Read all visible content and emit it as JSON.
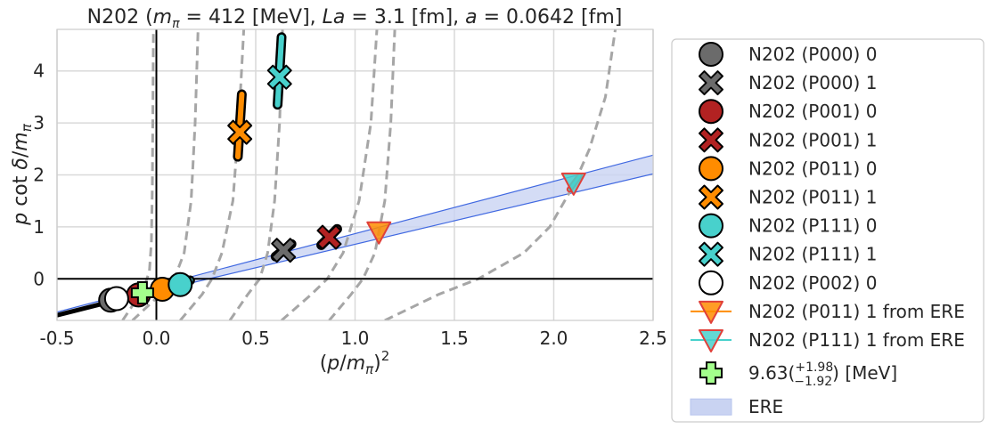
{
  "chart_data": {
    "type": "scatter",
    "title": {
      "main": "N202 (",
      "m": "m",
      "pi": "π",
      "eq1": " = 412 [MeV], ",
      "La": "La",
      "eq2": " = 3.1 [fm], ",
      "a": "a",
      "eq3": " = 0.0642 [fm]"
    },
    "xlabel": "(p/m_π)^2",
    "ylabel": "p cot δ/m_π",
    "xlim": [
      -0.5,
      2.5
    ],
    "ylim": [
      -0.8,
      4.8
    ],
    "xticks": [
      "-0.5",
      "0.0",
      "0.5",
      "1.0",
      "1.5",
      "2.0",
      "2.5"
    ],
    "xtick_values": [
      -0.5,
      0.0,
      0.5,
      1.0,
      1.5,
      2.0,
      2.5
    ],
    "yticks": [
      "0",
      "1",
      "2",
      "3",
      "4"
    ],
    "ytick_values": [
      0,
      1,
      2,
      3,
      4
    ],
    "grid": true,
    "legend_position": "outside-right",
    "colors": {
      "grey": "#6b6b6b",
      "red": "#b22222",
      "orange": "#ff8c00",
      "teal": "#48d1cc",
      "white": "#ffffff",
      "ere_fill": "#c9d3f2",
      "ere_line": "#4169e1",
      "dashed": "#a6a6a6",
      "cross_green": "#a3ff8c"
    },
    "ere_band": {
      "x": [
        -0.5,
        2.5
      ],
      "y_center": [
        -0.66,
        2.2
      ],
      "y_upper": [
        -0.64,
        2.38
      ],
      "y_lower": [
        -0.69,
        2.02
      ]
    },
    "ere_line_low": {
      "x": [
        -0.5,
        0.15
      ],
      "y": [
        -0.72,
        -0.04
      ]
    },
    "black_segment": {
      "x": [
        -0.5,
        -0.22
      ],
      "y": [
        -0.7,
        -0.43
      ]
    },
    "dashed_curves": [
      {
        "asymptote": -0.02,
        "y": [
          -0.8,
          -0.4,
          -0.15,
          0.15,
          0.7,
          1.8,
          4.8
        ],
        "x": [
          -0.17,
          -0.1,
          -0.06,
          -0.035,
          -0.025,
          -0.02,
          -0.015
        ]
      },
      {
        "asymptote": 0.2,
        "y": [
          -0.8,
          -0.3,
          0.0,
          0.5,
          1.5,
          3.0,
          4.8
        ],
        "x": [
          -0.12,
          0.02,
          0.09,
          0.14,
          0.175,
          0.195,
          0.21
        ]
      },
      {
        "asymptote": 0.43,
        "y": [
          -0.8,
          -0.3,
          0.0,
          0.5,
          1.5,
          3.0,
          4.8
        ],
        "x": [
          0.12,
          0.23,
          0.28,
          0.33,
          0.385,
          0.415,
          0.44
        ]
      },
      {
        "asymptote": 0.63,
        "y": [
          -0.8,
          -0.3,
          0.0,
          0.5,
          1.5,
          3.0,
          4.8
        ],
        "x": [
          0.37,
          0.46,
          0.52,
          0.56,
          0.595,
          0.62,
          0.635
        ]
      },
      {
        "asymptote": 1.12,
        "y": [
          -0.8,
          -0.3,
          0.0,
          0.5,
          1.5,
          3.0,
          4.8
        ],
        "x": [
          0.63,
          0.78,
          0.86,
          0.94,
          1.02,
          1.08,
          1.11
        ]
      },
      {
        "asymptote": 1.2,
        "y": [
          -0.8,
          -0.3,
          0.0,
          0.5,
          1.5,
          3.0,
          4.8
        ],
        "x": [
          0.87,
          0.98,
          1.04,
          1.1,
          1.15,
          1.18,
          1.2
        ]
      },
      {
        "asymptote": 2.35,
        "y": [
          -0.8,
          -0.3,
          0.0,
          0.5,
          1.0,
          1.8,
          2.5,
          3.5,
          4.8
        ],
        "x": [
          1.15,
          1.42,
          1.62,
          1.85,
          1.98,
          2.1,
          2.18,
          2.26,
          2.31
        ]
      }
    ],
    "series": [
      {
        "name": "N202 (P000) 0",
        "marker": "circle",
        "color": "#6b6b6b",
        "points": [
          {
            "x": -0.23,
            "y": -0.41
          }
        ],
        "segments": [
          {
            "x": [
              -0.26,
              -0.19
            ],
            "y": [
              -0.45,
              -0.37
            ]
          }
        ]
      },
      {
        "name": "N202 (P000) 1",
        "marker": "x",
        "color": "#6b6b6b",
        "points": [
          {
            "x": 0.64,
            "y": 0.55
          }
        ],
        "segments": [
          {
            "x": [
              0.6,
              0.68
            ],
            "y": [
              0.43,
              0.67
            ]
          }
        ]
      },
      {
        "name": "N202 (P001) 0",
        "marker": "circle",
        "color": "#b22222",
        "points": [
          {
            "x": -0.09,
            "y": -0.31
          }
        ],
        "segments": [
          {
            "x": [
              -0.11,
              -0.06
            ],
            "y": [
              -0.33,
              -0.28
            ]
          }
        ]
      },
      {
        "name": "N202 (P001) 1",
        "marker": "x",
        "color": "#b22222",
        "points": [
          {
            "x": 0.87,
            "y": 0.8
          }
        ],
        "segments": [
          {
            "x": [
              0.83,
              0.91
            ],
            "y": [
              0.65,
              0.96
            ]
          }
        ]
      },
      {
        "name": "N202 (P011) 0",
        "marker": "circle",
        "color": "#ff8c00",
        "points": [
          {
            "x": 0.03,
            "y": -0.2
          }
        ],
        "segments": [
          {
            "x": [
              0.0,
              0.06
            ],
            "y": [
              -0.24,
              -0.16
            ]
          }
        ]
      },
      {
        "name": "N202 (P011) 1",
        "marker": "x",
        "color": "#ff8c00",
        "points": [
          {
            "x": 0.42,
            "y": 2.82
          }
        ],
        "segments": [
          {
            "x": [
              0.41,
              0.43
            ],
            "y": [
              2.35,
              3.55
            ]
          }
        ]
      },
      {
        "name": "N202 (P111) 0",
        "marker": "circle",
        "color": "#48d1cc",
        "points": [
          {
            "x": 0.12,
            "y": -0.11
          }
        ],
        "segments": [
          {
            "x": [
              0.1,
              0.17
            ],
            "y": [
              -0.14,
              -0.03
            ]
          }
        ]
      },
      {
        "name": "N202 (P111) 1",
        "marker": "x",
        "color": "#48d1cc",
        "points": [
          {
            "x": 0.62,
            "y": 3.88
          }
        ],
        "segments": [
          {
            "x": [
              0.61,
              0.63
            ],
            "y": [
              3.35,
              4.65
            ]
          }
        ]
      },
      {
        "name": "N202 (P002) 0",
        "marker": "circle",
        "color": "#ffffff",
        "points": [
          {
            "x": -0.2,
            "y": -0.38
          }
        ],
        "segments": []
      },
      {
        "name": "N202 (P011) 1 from ERE",
        "marker": "triangle-down",
        "color": "#ff8c00",
        "edge": "#e0403a",
        "line": "#ff8c00",
        "points": [
          {
            "x": 1.12,
            "y": 0.9
          }
        ],
        "segments": []
      },
      {
        "name": "N202 (P111) 1 from ERE",
        "marker": "triangle-down",
        "color": "#48d1cc",
        "edge": "#e0403a",
        "line": "#48d1cc",
        "points": [
          {
            "x": 2.1,
            "y": 1.84
          }
        ],
        "segments": [
          {
            "x": [
              2.08,
              2.13
            ],
            "y": [
              1.72,
              1.98
            ]
          }
        ]
      },
      {
        "name": "9.63",
        "marker": "plus",
        "color": "#a3ff8c",
        "points": [
          {
            "x": -0.07,
            "y": -0.27
          }
        ],
        "segments": []
      }
    ],
    "legend": [
      {
        "label": "N202 (P000) 0",
        "marker": "circle",
        "color": "#6b6b6b"
      },
      {
        "label": "N202 (P000) 1",
        "marker": "x",
        "color": "#6b6b6b"
      },
      {
        "label": "N202 (P001) 0",
        "marker": "circle",
        "color": "#b22222"
      },
      {
        "label": "N202 (P001) 1",
        "marker": "x",
        "color": "#b22222"
      },
      {
        "label": "N202 (P011) 0",
        "marker": "circle",
        "color": "#ff8c00"
      },
      {
        "label": "N202 (P011) 1",
        "marker": "x",
        "color": "#ff8c00"
      },
      {
        "label": "N202 (P111) 0",
        "marker": "circle",
        "color": "#48d1cc"
      },
      {
        "label": "N202 (P111) 1",
        "marker": "x",
        "color": "#48d1cc"
      },
      {
        "label": "N202 (P002) 0",
        "marker": "circle",
        "color": "#ffffff"
      },
      {
        "label": "N202 (P011) 1 from ERE",
        "marker": "triangle-down-line",
        "color": "#ff8c00",
        "edge": "#e0403a",
        "line": "#ff8c00"
      },
      {
        "label": "N202 (P111) 1 from ERE",
        "marker": "triangle-down-line",
        "color": "#48d1cc",
        "edge": "#e0403a",
        "line": "#48d1cc"
      },
      {
        "label": "9.63",
        "sup": "+1.98",
        "sub": "−1.92",
        "unit": " [MeV]",
        "marker": "plus",
        "color": "#a3ff8c"
      },
      {
        "label": "ERE",
        "marker": "patch",
        "color": "#c9d3f2"
      }
    ]
  }
}
